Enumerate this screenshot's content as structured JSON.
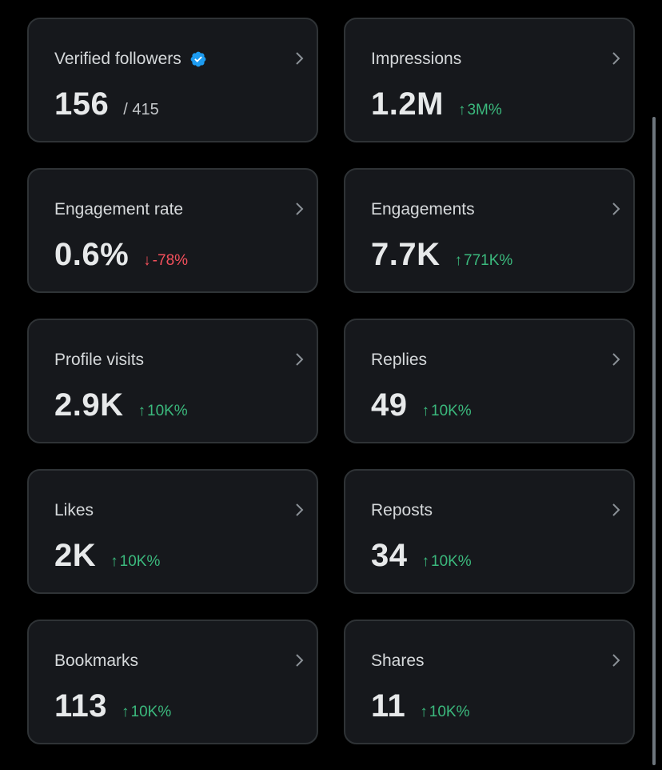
{
  "colors": {
    "background": "#000000",
    "card_background": "#16181c",
    "card_border": "#2f3336",
    "positive": "#3bb97d",
    "negative": "#f4505c",
    "verified_badge": "#1d9bf0"
  },
  "cards": [
    {
      "label": "Verified followers",
      "value": "156",
      "sub": "/ 415",
      "icon": "verified-badge-icon"
    },
    {
      "label": "Impressions",
      "value": "1.2M",
      "arrow": "↑",
      "change": "3M%",
      "direction": "up"
    },
    {
      "label": "Engagement rate",
      "value": "0.6%",
      "arrow": "↓",
      "change": "-78%",
      "direction": "down"
    },
    {
      "label": "Engagements",
      "value": "7.7K",
      "arrow": "↑",
      "change": "771K%",
      "direction": "up"
    },
    {
      "label": "Profile visits",
      "value": "2.9K",
      "arrow": "↑",
      "change": "10K%",
      "direction": "up"
    },
    {
      "label": "Replies",
      "value": "49",
      "arrow": "↑",
      "change": "10K%",
      "direction": "up"
    },
    {
      "label": "Likes",
      "value": "2K",
      "arrow": "↑",
      "change": "10K%",
      "direction": "up"
    },
    {
      "label": "Reposts",
      "value": "34",
      "arrow": "↑",
      "change": "10K%",
      "direction": "up"
    },
    {
      "label": "Bookmarks",
      "value": "113",
      "arrow": "↑",
      "change": "10K%",
      "direction": "up"
    },
    {
      "label": "Shares",
      "value": "11",
      "arrow": "↑",
      "change": "10K%",
      "direction": "up"
    }
  ]
}
